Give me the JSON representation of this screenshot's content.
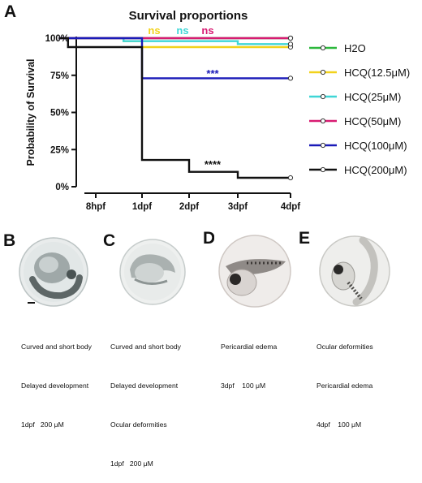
{
  "panel_labels": {
    "a": "A",
    "b": "B",
    "c": "C",
    "d": "D",
    "e": "E"
  },
  "chart_data": {
    "type": "line",
    "title": "Survival proportions",
    "xlabel": "",
    "ylabel": "Probability of Survival",
    "categories": [
      "8hpf",
      "1dpf",
      "2dpf",
      "3dpf",
      "4dpf"
    ],
    "x": [
      0,
      1,
      2,
      3,
      4
    ],
    "ylim": [
      0,
      100
    ],
    "yticks": [
      0,
      25,
      50,
      75,
      100
    ],
    "ytick_labels": [
      "0%",
      "25%",
      "50%",
      "75%",
      "100%"
    ],
    "step": true,
    "grid": false,
    "legend_position": "right",
    "series": [
      {
        "name": "H2O",
        "color": "#2db83d",
        "steps": [
          [
            -0.8,
            100
          ],
          [
            4,
            100
          ]
        ]
      },
      {
        "name": "HCQ(12.5μM)",
        "color": "#f2d21b",
        "steps": [
          [
            -0.8,
            100
          ],
          [
            0.6,
            100
          ],
          [
            0.6,
            98
          ],
          [
            1,
            98
          ],
          [
            1,
            94
          ],
          [
            4,
            94
          ]
        ]
      },
      {
        "name": "HCQ(25μM)",
        "color": "#3fd6d6",
        "steps": [
          [
            -0.8,
            100
          ],
          [
            0.6,
            100
          ],
          [
            0.6,
            98
          ],
          [
            3,
            98
          ],
          [
            3,
            96
          ],
          [
            4,
            96
          ]
        ]
      },
      {
        "name": "HCQ(50μM)",
        "color": "#d81b72",
        "steps": [
          [
            -0.8,
            100
          ],
          [
            4,
            100
          ]
        ]
      },
      {
        "name": "HCQ(100μM)",
        "color": "#1a1ab8",
        "steps": [
          [
            -0.8,
            100
          ],
          [
            1,
            100
          ],
          [
            1,
            73
          ],
          [
            4,
            73
          ]
        ]
      },
      {
        "name": "HCQ(200μM)",
        "color": "#111111",
        "steps": [
          [
            -0.8,
            100
          ],
          [
            -0.6,
            100
          ],
          [
            -0.6,
            94
          ],
          [
            1,
            94
          ],
          [
            1,
            18
          ],
          [
            2,
            18
          ],
          [
            2,
            10
          ],
          [
            3,
            10
          ],
          [
            3,
            6
          ],
          [
            4,
            6
          ]
        ]
      }
    ],
    "annotations": [
      {
        "text": "ns",
        "color": "#f2d21b"
      },
      {
        "text": "ns",
        "color": "#3fd6d6"
      },
      {
        "text": "ns",
        "color": "#d81b72"
      },
      {
        "text": "***",
        "color": "#1a1ab8"
      },
      {
        "text": "****",
        "color": "#111111"
      }
    ]
  },
  "photos": [
    {
      "label": "B",
      "captions": [
        "Curved and short body",
        "Delayed development",
        "1dpf   200 μM"
      ]
    },
    {
      "label": "C",
      "captions": [
        "Curved and short body",
        "Delayed development",
        "Ocular deformities",
        "1dpf   200 μM"
      ]
    },
    {
      "label": "D",
      "captions": [
        "Pericardial edema",
        "3dpf    100 μM"
      ]
    },
    {
      "label": "E",
      "captions": [
        "Ocular deformities",
        "Pericardial edema",
        "4dpf    100 μM"
      ]
    }
  ]
}
